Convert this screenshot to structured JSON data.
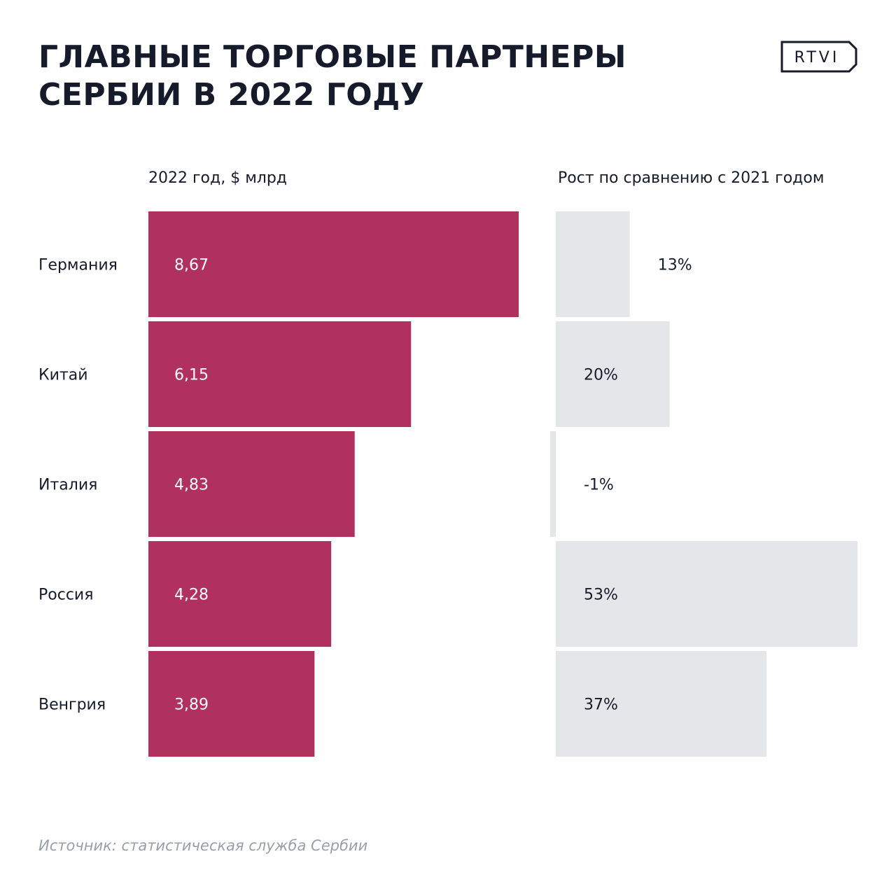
{
  "header": {
    "title_line1": "ГЛАВНЫЕ ТОРГОВЫЕ ПАРТНЕРЫ",
    "title_line2": "СЕРБИИ В 2022 ГОДУ",
    "logo_text": "RTVI"
  },
  "colors": {
    "primary_bar": "#b0305e",
    "growth_bar": "#e5e6e9",
    "text": "#161b2b",
    "source_text": "#9a9ea8"
  },
  "chart_data": {
    "type": "bar",
    "orientation": "horizontal",
    "categories": [
      "Германия",
      "Китай",
      "Италия",
      "Россия",
      "Венгрия"
    ],
    "series": [
      {
        "name": "2022 год, $ млрд",
        "values": [
          8.67,
          6.15,
          4.83,
          4.28,
          3.89
        ],
        "labels": [
          "8,67",
          "6,15",
          "4,83",
          "4,28",
          "3,89"
        ]
      },
      {
        "name": "Рост по сравнению с 2021 годом",
        "values": [
          13,
          20,
          -1,
          53,
          37
        ],
        "labels": [
          "13%",
          "20%",
          "-1%",
          "53%",
          "37%"
        ]
      }
    ],
    "xlim_primary": [
      0,
      8.67
    ],
    "xlim_growth": [
      0,
      53
    ]
  },
  "footer": {
    "source": "Источник: статистическая служба Сербии"
  }
}
